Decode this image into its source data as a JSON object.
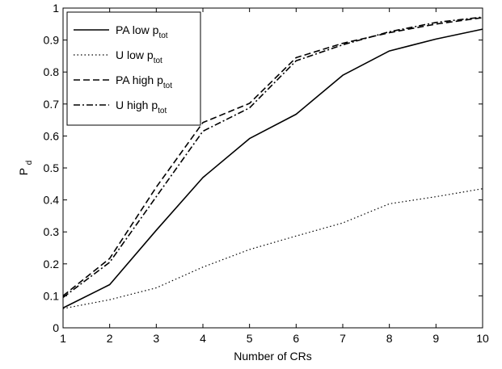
{
  "chart_data": {
    "type": "line",
    "xlabel": "Number of CRs",
    "ylabel": "P",
    "ylabel_sub": "d",
    "xlim": [
      1,
      10
    ],
    "ylim": [
      0,
      1
    ],
    "x": [
      1,
      2,
      3,
      4,
      5,
      6,
      7,
      8,
      9,
      10
    ],
    "xticks": [
      "1",
      "2",
      "3",
      "4",
      "5",
      "6",
      "7",
      "8",
      "9",
      "10"
    ],
    "yticks": [
      "0",
      "0.1",
      "0.2",
      "0.3",
      "0.4",
      "0.5",
      "0.6",
      "0.7",
      "0.8",
      "0.9",
      "1"
    ],
    "legend_position": "top-left",
    "grid": false,
    "series": [
      {
        "name": "PA low p",
        "name_sub": "tot",
        "style": "solid",
        "values": [
          0.062,
          0.135,
          0.305,
          0.47,
          0.592,
          0.668,
          0.79,
          0.866,
          0.903,
          0.934
        ]
      },
      {
        "name": "U low p",
        "name_sub": "tot",
        "style": "dotted",
        "values": [
          0.06,
          0.088,
          0.125,
          0.19,
          0.245,
          0.287,
          0.328,
          0.388,
          0.41,
          0.435
        ]
      },
      {
        "name": "PA high p",
        "name_sub": "tot",
        "style": "dashed",
        "values": [
          0.1,
          0.217,
          0.44,
          0.642,
          0.702,
          0.845,
          0.89,
          0.923,
          0.95,
          0.97
        ]
      },
      {
        "name": "U high p",
        "name_sub": "tot",
        "style": "dashdot",
        "values": [
          0.095,
          0.205,
          0.41,
          0.615,
          0.688,
          0.835,
          0.885,
          0.926,
          0.955,
          0.972
        ]
      }
    ]
  }
}
